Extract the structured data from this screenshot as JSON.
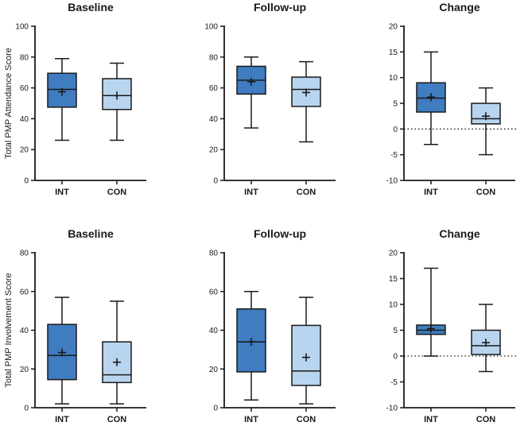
{
  "colors": {
    "INT": "#3f7cc0",
    "CON": "#b8d4ef",
    "stroke": "#1a1a1a"
  },
  "chart_data": [
    {
      "type": "box",
      "title": "Baseline",
      "ylabel": "Total PMP Attendance Score",
      "ylim": [
        0,
        100
      ],
      "yticks": [
        0,
        20,
        40,
        60,
        80,
        100
      ],
      "categories": [
        "INT",
        "CON"
      ],
      "boxes": [
        {
          "name": "INT",
          "min": 26,
          "q1": 47.5,
          "median": 59,
          "q3": 69.5,
          "max": 79,
          "mean": 57.5
        },
        {
          "name": "CON",
          "min": 26,
          "q1": 46,
          "median": 55,
          "q3": 66,
          "max": 76,
          "mean": 55
        }
      ],
      "zero_line": false
    },
    {
      "type": "box",
      "title": "Follow-up",
      "ylabel": "",
      "ylim": [
        0,
        100
      ],
      "yticks": [
        0,
        20,
        40,
        60,
        80,
        100
      ],
      "categories": [
        "INT",
        "CON"
      ],
      "boxes": [
        {
          "name": "INT",
          "min": 34,
          "q1": 56,
          "median": 65,
          "q3": 74,
          "max": 80,
          "mean": 64
        },
        {
          "name": "CON",
          "min": 25,
          "q1": 48,
          "median": 59,
          "q3": 67,
          "max": 77,
          "mean": 57
        }
      ],
      "zero_line": false
    },
    {
      "type": "box",
      "title": "Change",
      "ylabel": "",
      "ylim": [
        -10,
        20
      ],
      "yticks": [
        -10,
        -5,
        0,
        5,
        10,
        15,
        20
      ],
      "categories": [
        "INT",
        "CON"
      ],
      "boxes": [
        {
          "name": "INT",
          "min": -3,
          "q1": 3.3,
          "median": 6,
          "q3": 9,
          "max": 15,
          "mean": 6.2
        },
        {
          "name": "CON",
          "min": -5,
          "q1": 1,
          "median": 2,
          "q3": 5,
          "max": 8,
          "mean": 2.5
        }
      ],
      "zero_line": true
    },
    {
      "type": "box",
      "title": "Baseline",
      "ylabel": "Total PMP Involvement Score",
      "ylim": [
        0,
        80
      ],
      "yticks": [
        0,
        20,
        40,
        60,
        80
      ],
      "categories": [
        "INT",
        "CON"
      ],
      "boxes": [
        {
          "name": "INT",
          "min": 2,
          "q1": 14.5,
          "median": 27,
          "q3": 43,
          "max": 57,
          "mean": 28.5
        },
        {
          "name": "CON",
          "min": 2,
          "q1": 13,
          "median": 17,
          "q3": 34,
          "max": 55,
          "mean": 23.5
        }
      ],
      "zero_line": false
    },
    {
      "type": "box",
      "title": "Follow-up",
      "ylabel": "",
      "ylim": [
        0,
        80
      ],
      "yticks": [
        0,
        20,
        40,
        60,
        80
      ],
      "categories": [
        "INT",
        "CON"
      ],
      "boxes": [
        {
          "name": "INT",
          "min": 4,
          "q1": 18.5,
          "median": 34,
          "q3": 51,
          "max": 60,
          "mean": 34
        },
        {
          "name": "CON",
          "min": 2,
          "q1": 11.5,
          "median": 19,
          "q3": 42.5,
          "max": 57,
          "mean": 26
        }
      ],
      "zero_line": false
    },
    {
      "type": "box",
      "title": "Change",
      "ylabel": "",
      "ylim": [
        -10,
        20
      ],
      "yticks": [
        -10,
        -5,
        0,
        5,
        10,
        15,
        20
      ],
      "categories": [
        "INT",
        "CON"
      ],
      "boxes": [
        {
          "name": "INT",
          "min": 0,
          "q1": 4.2,
          "median": 5,
          "q3": 6,
          "max": 17,
          "mean": 5.3
        },
        {
          "name": "CON",
          "min": -3,
          "q1": 0.3,
          "median": 2,
          "q3": 5,
          "max": 10,
          "mean": 2.6
        }
      ],
      "zero_line": true
    }
  ]
}
